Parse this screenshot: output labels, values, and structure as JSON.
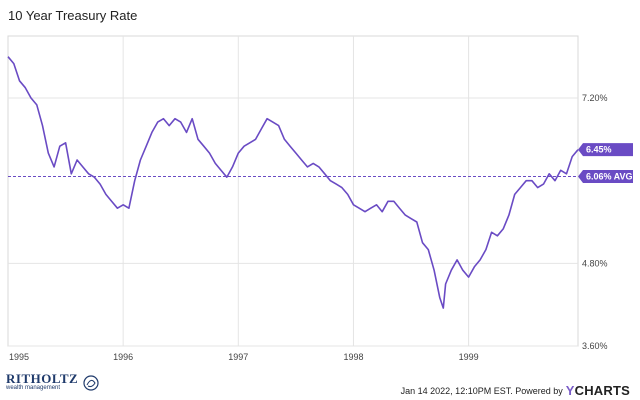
{
  "chart_data": {
    "type": "line",
    "title": "10 Year Treasury Rate",
    "x_axis": {
      "labels": [
        "1995",
        "1996",
        "1997",
        "1998",
        "1999"
      ],
      "range": [
        1995.0,
        1999.95
      ]
    },
    "y_axis": {
      "labels": [
        "7.20%",
        "4.80%",
        "3.60%"
      ],
      "ticks": [
        7.2,
        4.8,
        3.6
      ],
      "range": [
        3.6,
        8.1
      ],
      "side": "right"
    },
    "grid": true,
    "average": {
      "value": 6.06,
      "label": "6.06% AVG"
    },
    "last_value": {
      "value": 6.45,
      "label": "6.45%"
    },
    "line_color": "#6a4bc4",
    "series": [
      {
        "name": "10 Year Treasury Rate",
        "x": [
          1995.0,
          1995.05,
          1995.1,
          1995.15,
          1995.2,
          1995.25,
          1995.3,
          1995.35,
          1995.4,
          1995.45,
          1995.5,
          1995.55,
          1995.6,
          1995.65,
          1995.7,
          1995.75,
          1995.8,
          1995.85,
          1995.9,
          1995.95,
          1996.0,
          1996.05,
          1996.1,
          1996.15,
          1996.2,
          1996.25,
          1996.3,
          1996.35,
          1996.4,
          1996.45,
          1996.5,
          1996.55,
          1996.6,
          1996.65,
          1996.7,
          1996.75,
          1996.8,
          1996.85,
          1996.9,
          1996.95,
          1997.0,
          1997.05,
          1997.1,
          1997.15,
          1997.2,
          1997.25,
          1997.3,
          1997.35,
          1997.4,
          1997.45,
          1997.5,
          1997.55,
          1997.6,
          1997.65,
          1997.7,
          1997.75,
          1997.8,
          1997.85,
          1997.9,
          1997.95,
          1998.0,
          1998.05,
          1998.1,
          1998.15,
          1998.2,
          1998.25,
          1998.3,
          1998.35,
          1998.4,
          1998.45,
          1998.5,
          1998.55,
          1998.6,
          1998.65,
          1998.7,
          1998.75,
          1998.78,
          1998.8,
          1998.85,
          1998.9,
          1998.95,
          1999.0,
          1999.05,
          1999.1,
          1999.15,
          1999.2,
          1999.25,
          1999.3,
          1999.35,
          1999.4,
          1999.45,
          1999.5,
          1999.55,
          1999.6,
          1999.65,
          1999.7,
          1999.75,
          1999.8,
          1999.85,
          1999.9,
          1999.95
        ],
        "y": [
          7.8,
          7.7,
          7.45,
          7.35,
          7.2,
          7.1,
          6.8,
          6.4,
          6.2,
          6.5,
          6.55,
          6.1,
          6.3,
          6.2,
          6.1,
          6.05,
          5.95,
          5.8,
          5.7,
          5.6,
          5.65,
          5.6,
          6.0,
          6.3,
          6.5,
          6.7,
          6.85,
          6.9,
          6.8,
          6.9,
          6.85,
          6.7,
          6.9,
          6.6,
          6.5,
          6.4,
          6.25,
          6.15,
          6.05,
          6.2,
          6.4,
          6.5,
          6.55,
          6.6,
          6.75,
          6.9,
          6.85,
          6.8,
          6.6,
          6.5,
          6.4,
          6.3,
          6.2,
          6.25,
          6.2,
          6.1,
          6.0,
          5.95,
          5.9,
          5.8,
          5.65,
          5.6,
          5.55,
          5.6,
          5.65,
          5.55,
          5.7,
          5.7,
          5.6,
          5.5,
          5.45,
          5.4,
          5.1,
          5.0,
          4.7,
          4.3,
          4.15,
          4.5,
          4.7,
          4.85,
          4.7,
          4.6,
          4.75,
          4.85,
          5.0,
          5.25,
          5.2,
          5.3,
          5.5,
          5.8,
          5.9,
          6.0,
          6.0,
          5.9,
          5.95,
          6.1,
          6.0,
          6.15,
          6.1,
          6.35,
          6.45
        ]
      }
    ]
  },
  "footer": {
    "brand_name": "RITHOLTZ",
    "brand_sub": "wealth management",
    "timestamp": "Jan 14 2022, 12:10PM EST. Powered by",
    "provider_y": "Y",
    "provider_rest": "CHARTS"
  }
}
